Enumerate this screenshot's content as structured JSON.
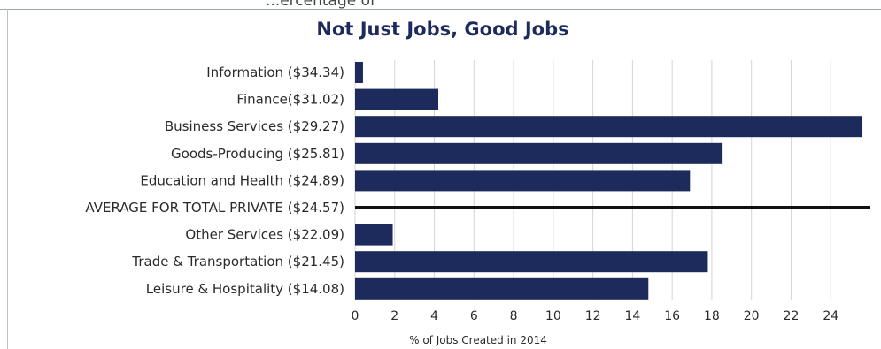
{
  "page": {
    "top_text": "...ercentage of"
  },
  "chart_data": {
    "type": "bar",
    "orientation": "horizontal",
    "title": "Not Just Jobs, Good Jobs",
    "xlabel": "% of Jobs Created in 2014",
    "ylabel": "",
    "xlim": [
      0,
      26
    ],
    "xticks": [
      0,
      2,
      4,
      6,
      8,
      10,
      12,
      14,
      16,
      18,
      20,
      22,
      24
    ],
    "grid": true,
    "categories": [
      "Information ($34.34)",
      "Finance($31.02)",
      "Business Services ($29.27)",
      "Goods-Producing ($25.81)",
      "Education and Health ($24.89)",
      "AVERAGE FOR TOTAL PRIVATE ($24.57)",
      "Other Services ($22.09)",
      "Trade & Transportation ($21.45)",
      "Leisure & Hospitality ($14.08)"
    ],
    "values": [
      0.4,
      4.2,
      25.6,
      18.5,
      16.9,
      null,
      1.9,
      17.8,
      14.8
    ],
    "reference_line": {
      "category": "AVERAGE FOR TOTAL PRIVATE ($24.57)",
      "color": "#111111"
    },
    "colors": {
      "bar": "#1c2a5c",
      "grid": "#d4d4d4",
      "title": "#1c2a5c"
    }
  }
}
